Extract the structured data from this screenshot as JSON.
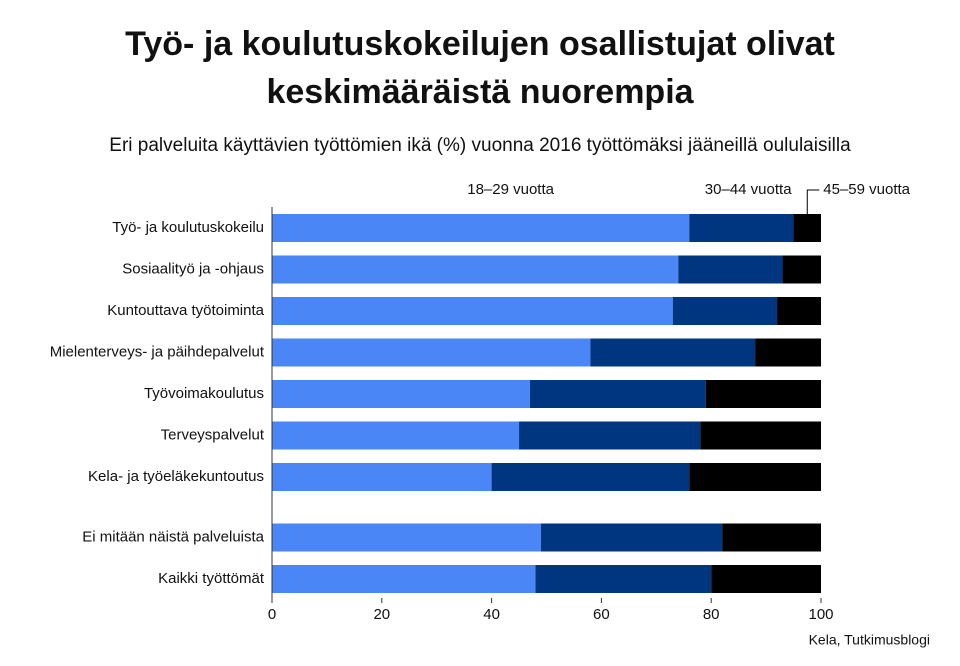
{
  "chart_data": {
    "type": "stacked-bar-horizontal",
    "title": [
      "Työ- ja koulutuskokeilujen osallistujat olivat",
      "keskimääräistä nuorempia"
    ],
    "subtitle": "Eri palveluita käyttävien työttömien ikä (%) vuonna 2016 työttömäksi jääneillä oululaisilla",
    "source": "Kela, Tutkimusblogi",
    "categories": [
      "Työ- ja koulutuskokeilu",
      "Sosiaalityö ja -ohjaus",
      "Kuntouttava työtoiminta",
      "Mielenterveys- ja päihdepalvelut",
      "Työvoimakoulutus",
      "Terveyspalvelut",
      "Kela- ja työeläkekuntoutus",
      "Ei mitään näistä palveluista",
      "Kaikki työttömät"
    ],
    "series": [
      {
        "name": "18–29 vuotta",
        "color": "#4a86f5",
        "values": [
          76,
          74,
          73,
          58,
          47,
          45,
          40,
          49,
          48
        ]
      },
      {
        "name": "30–44 vuotta",
        "color": "#00367f",
        "values": [
          19,
          19,
          19,
          30,
          32,
          33,
          36,
          33,
          32
        ]
      },
      {
        "name": "45–59 vuotta",
        "color": "#000000",
        "values": [
          5,
          7,
          8,
          12,
          21,
          22,
          24,
          18,
          20
        ]
      }
    ],
    "xlim": [
      0,
      100
    ],
    "xticks": [
      0,
      20,
      40,
      60,
      80,
      100
    ]
  }
}
